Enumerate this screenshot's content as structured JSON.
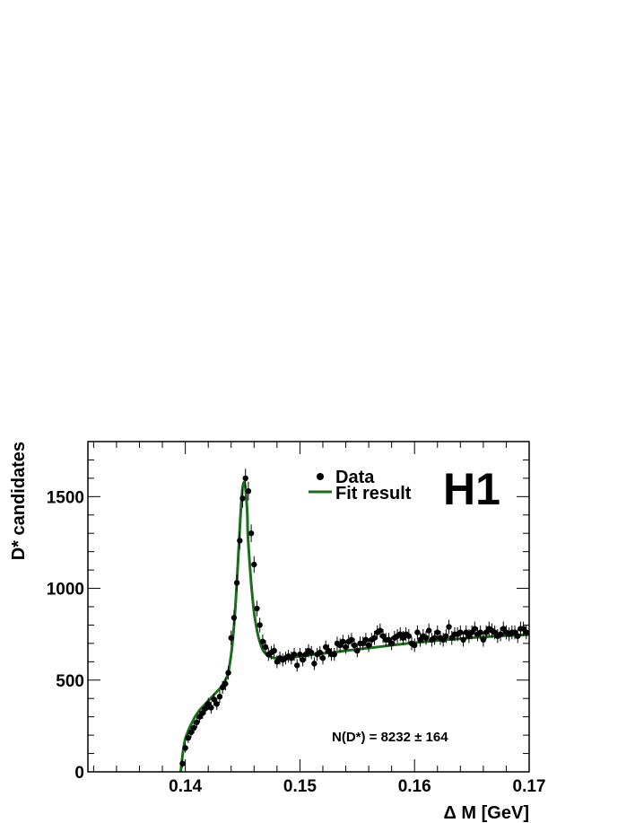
{
  "chart_data": {
    "type": "scatter",
    "xlabel": "Δ M [GeV]",
    "ylabel": "D* candidates",
    "xlim": [
      0.1315,
      0.17
    ],
    "ylim": [
      0,
      1800
    ],
    "x_ticks": [
      "0.14",
      "0.15",
      "0.16",
      "0.17"
    ],
    "x_tick_values": [
      0.14,
      0.15,
      0.16,
      0.17
    ],
    "y_ticks": [
      "0",
      "500",
      "1000",
      "1500"
    ],
    "y_tick_values": [
      0,
      500,
      1000,
      1500
    ],
    "legend": {
      "position": "top-right",
      "entries": [
        {
          "marker": "point",
          "label": "Data"
        },
        {
          "marker": "line",
          "label": "Fit result"
        }
      ]
    },
    "logo": "H1",
    "annotation": "N(D*) = 8232 ± 164",
    "colors": {
      "data": "#000000",
      "fit": "#1a6e1a"
    },
    "series": [
      {
        "name": "Data",
        "kind": "points_with_errors",
        "x": [
          0.13975,
          0.14,
          0.14025,
          0.1405,
          0.14075,
          0.141,
          0.14125,
          0.1415,
          0.14175,
          0.142,
          0.14225,
          0.1425,
          0.14275,
          0.143,
          0.14325,
          0.1435,
          0.14375,
          0.144,
          0.14425,
          0.1445,
          0.14475,
          0.145,
          0.14525,
          0.1455,
          0.14575,
          0.146,
          0.14625,
          0.1465,
          0.14675,
          0.147,
          0.14725,
          0.1475,
          0.14775,
          0.148,
          0.14825,
          0.1485,
          0.14875,
          0.149,
          0.14925,
          0.1495,
          0.14975,
          0.15,
          0.15025,
          0.1505,
          0.15075,
          0.151,
          0.15125,
          0.1515,
          0.15175,
          0.152,
          0.15225,
          0.1525,
          0.15275,
          0.153,
          0.15325,
          0.1535,
          0.15375,
          0.154,
          0.15425,
          0.1545,
          0.15475,
          0.155,
          0.15525,
          0.1555,
          0.15575,
          0.156,
          0.15625,
          0.1565,
          0.15675,
          0.157,
          0.15725,
          0.1575,
          0.15775,
          0.158,
          0.15825,
          0.1585,
          0.15875,
          0.159,
          0.15925,
          0.1595,
          0.15975,
          0.16,
          0.16025,
          0.1605,
          0.16075,
          0.161,
          0.16125,
          0.1615,
          0.16175,
          0.162,
          0.16225,
          0.1625,
          0.16275,
          0.163,
          0.16325,
          0.1635,
          0.16375,
          0.164,
          0.16425,
          0.1645,
          0.16475,
          0.165,
          0.16525,
          0.1655,
          0.16575,
          0.166,
          0.16625,
          0.1665,
          0.16675,
          0.167,
          0.16725,
          0.1675,
          0.16775,
          0.168,
          0.16825,
          0.1685,
          0.16875,
          0.169,
          0.16925,
          0.1695,
          0.16975
        ],
        "y": [
          45,
          130,
          185,
          215,
          240,
          270,
          300,
          320,
          345,
          370,
          350,
          395,
          370,
          410,
          460,
          480,
          540,
          730,
          840,
          1030,
          1260,
          1490,
          1600,
          1530,
          1300,
          1130,
          890,
          800,
          710,
          680,
          640,
          650,
          660,
          600,
          620,
          610,
          620,
          630,
          620,
          640,
          580,
          640,
          610,
          640,
          660,
          650,
          590,
          640,
          650,
          620,
          680,
          660,
          640,
          640,
          700,
          690,
          710,
          680,
          710,
          720,
          690,
          660,
          700,
          700,
          720,
          690,
          720,
          730,
          760,
          770,
          740,
          720,
          720,
          700,
          730,
          740,
          750,
          730,
          750,
          740,
          700,
          690,
          760,
          720,
          740,
          730,
          770,
          720,
          730,
          760,
          730,
          720,
          740,
          790,
          730,
          750,
          750,
          760,
          720,
          760,
          740,
          760,
          780,
          750,
          760,
          720,
          760,
          780,
          770,
          760,
          740,
          750,
          780,
          760,
          750,
          760,
          760,
          740,
          780,
          780,
          760
        ],
        "yerr": [
          22,
          25,
          28,
          30,
          30,
          30,
          31,
          32,
          32,
          33,
          33,
          33,
          33,
          34,
          35,
          36,
          37,
          40,
          42,
          45,
          48,
          50,
          52,
          51,
          48,
          45,
          42,
          40,
          38,
          37,
          36,
          36,
          36,
          35,
          35,
          35,
          35,
          35,
          35,
          35,
          34,
          35,
          35,
          35,
          36,
          36,
          35,
          35,
          36,
          35,
          36,
          36,
          35,
          35,
          37,
          37,
          37,
          37,
          37,
          37,
          37,
          36,
          37,
          37,
          37,
          37,
          37,
          38,
          38,
          38,
          38,
          37,
          37,
          37,
          38,
          38,
          38,
          38,
          38,
          38,
          37,
          37,
          38,
          38,
          38,
          38,
          38,
          38,
          38,
          38,
          38,
          38,
          38,
          39,
          38,
          38,
          38,
          38,
          38,
          38,
          38,
          38,
          39,
          38,
          38,
          38,
          38,
          39,
          39,
          38,
          38,
          38,
          39,
          38,
          38,
          38,
          38,
          38,
          39,
          39,
          38
        ]
      },
      {
        "name": "Fit result",
        "kind": "line",
        "x": [
          0.1396,
          0.1397,
          0.1398,
          0.1399,
          0.14,
          0.1402,
          0.1404,
          0.1406,
          0.1408,
          0.141,
          0.1413,
          0.1416,
          0.1419,
          0.1422,
          0.1425,
          0.1428,
          0.1431,
          0.1434,
          0.1437,
          0.144,
          0.1442,
          0.1444,
          0.1446,
          0.1448,
          0.145,
          0.1452,
          0.1454,
          0.14545,
          0.1456,
          0.1458,
          0.146,
          0.1462,
          0.1464,
          0.1466,
          0.1468,
          0.147,
          0.1472,
          0.1475,
          0.1478,
          0.1482,
          0.1486,
          0.149,
          0.1495,
          0.15,
          0.151,
          0.152,
          0.153,
          0.154,
          0.155,
          0.156,
          0.157,
          0.158,
          0.159,
          0.16,
          0.161,
          0.162,
          0.163,
          0.164,
          0.165,
          0.166,
          0.167,
          0.168,
          0.169,
          0.17
        ],
        "y": [
          0,
          60,
          110,
          150,
          180,
          215,
          245,
          270,
          295,
          315,
          340,
          360,
          380,
          400,
          420,
          440,
          460,
          490,
          530,
          640,
          760,
          930,
          1150,
          1380,
          1550,
          1565,
          1420,
          1300,
          1150,
          990,
          870,
          790,
          730,
          690,
          660,
          645,
          635,
          625,
          620,
          620,
          620,
          622,
          625,
          630,
          638,
          645,
          652,
          660,
          668,
          675,
          682,
          690,
          697,
          704,
          710,
          716,
          721,
          726,
          731,
          735,
          739,
          742,
          745,
          748
        ]
      }
    ]
  }
}
